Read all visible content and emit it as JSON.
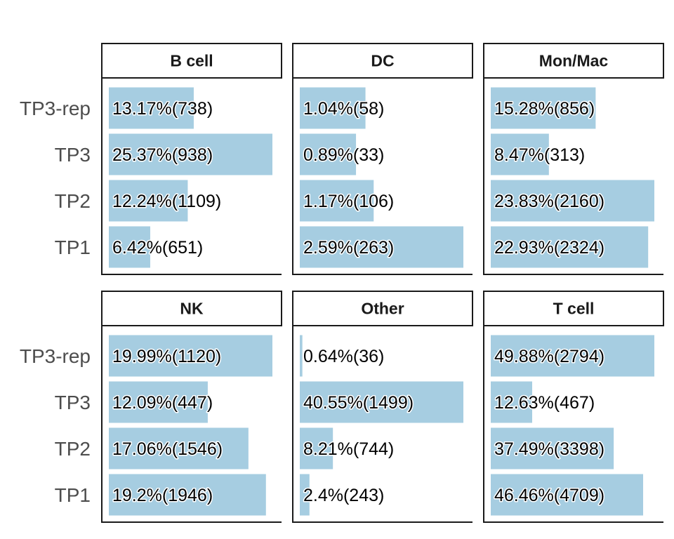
{
  "chart_data": {
    "type": "bar",
    "orientation": "horizontal",
    "faceted": true,
    "categories": [
      "TP3-rep",
      "TP3",
      "TP2",
      "TP1"
    ],
    "bar_color": "#a6cde1",
    "grid": false,
    "legend": "none",
    "facets": [
      {
        "title": "B cell",
        "percent": [
          13.17,
          25.37,
          12.24,
          6.42
        ],
        "counts": [
          738,
          938,
          1109,
          651
        ],
        "labels": [
          "13.17%(738)",
          "25.37%(938)",
          "12.24%(1109)",
          "6.42%(651)"
        ]
      },
      {
        "title": "DC",
        "percent": [
          1.04,
          0.89,
          1.17,
          2.59
        ],
        "counts": [
          58,
          33,
          106,
          263
        ],
        "labels": [
          "1.04%(58)",
          "0.89%(33)",
          "1.17%(106)",
          "2.59%(263)"
        ]
      },
      {
        "title": "Mon/Mac",
        "percent": [
          15.28,
          8.47,
          23.83,
          22.93
        ],
        "counts": [
          856,
          313,
          2160,
          2324
        ],
        "labels": [
          "15.28%(856)",
          "8.47%(313)",
          "23.83%(2160)",
          "22.93%(2324)"
        ]
      },
      {
        "title": "NK",
        "percent": [
          19.99,
          12.09,
          17.06,
          19.2
        ],
        "counts": [
          1120,
          447,
          1546,
          1946
        ],
        "labels": [
          "19.99%(1120)",
          "12.09%(447)",
          "17.06%(1546)",
          "19.2%(1946)"
        ]
      },
      {
        "title": "Other",
        "percent": [
          0.64,
          40.55,
          8.21,
          2.4
        ],
        "counts": [
          36,
          1499,
          744,
          243
        ],
        "labels": [
          "0.64%(36)",
          "40.55%(1499)",
          "8.21%(744)",
          "2.4%(243)"
        ]
      },
      {
        "title": "T cell",
        "percent": [
          49.88,
          12.63,
          37.49,
          46.46
        ],
        "counts": [
          2794,
          467,
          3398,
          4709
        ],
        "labels": [
          "49.88%(2794)",
          "12.63%(467)",
          "37.49%(3398)",
          "46.46%(4709)"
        ]
      }
    ]
  }
}
